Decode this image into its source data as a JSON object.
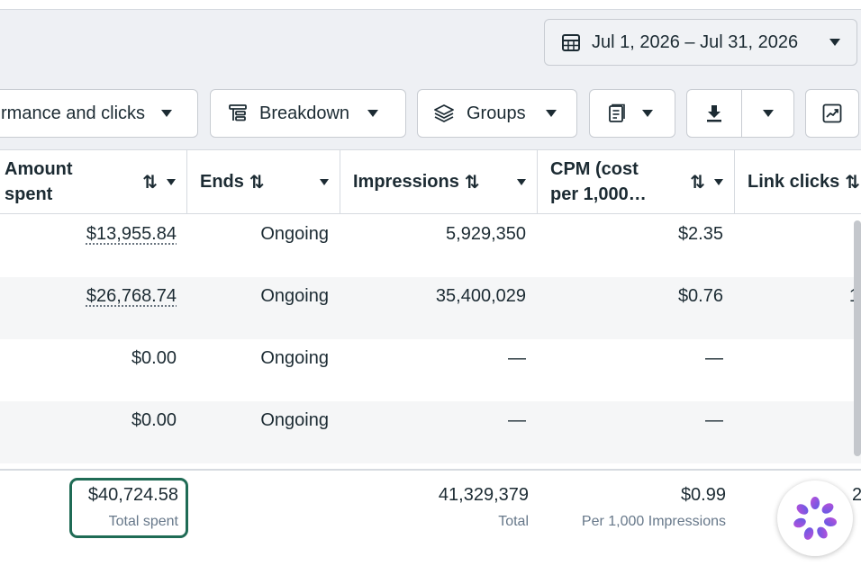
{
  "date_range": {
    "label": "Jul 1, 2026 – Jul 31, 2026"
  },
  "toolbar": {
    "columns_label": "rmance and clicks",
    "breakdown_label": "Breakdown",
    "groups_label": "Groups"
  },
  "table": {
    "headers": {
      "amount_spent": [
        "Amount",
        "spent"
      ],
      "ends": "Ends",
      "impressions": "Impressions",
      "cpm": [
        "CPM (cost",
        "per 1,000…"
      ],
      "link_clicks": "Link clicks"
    },
    "rows": [
      {
        "amount_spent": "$13,955.84",
        "ends": "Ongoing",
        "impressions": "5,929,350",
        "cpm": "$2.35",
        "link_clicks": ""
      },
      {
        "amount_spent": "$26,768.74",
        "ends": "Ongoing",
        "impressions": "35,400,029",
        "cpm": "$0.76",
        "link_clicks": "1"
      },
      {
        "amount_spent": "$0.00",
        "ends": "Ongoing",
        "impressions": "—",
        "cpm": "—",
        "link_clicks": ""
      },
      {
        "amount_spent": "$0.00",
        "ends": "Ongoing",
        "impressions": "—",
        "cpm": "—",
        "link_clicks": ""
      }
    ],
    "totals": {
      "amount_spent": "$40,724.58",
      "amount_spent_sub": "Total spent",
      "impressions": "41,329,379",
      "impressions_sub": "Total",
      "cpm": "$0.99",
      "cpm_sub": "Per 1,000 Impressions",
      "link_clicks": "2"
    }
  },
  "icons": {
    "calendar": "calendar-icon",
    "breakdown": "breakdown-icon",
    "groups": "layers-icon",
    "reports": "reports-icon",
    "download": "download-icon",
    "chart": "chart-icon",
    "assistant": "assistant-icon"
  },
  "colors": {
    "highlight_border": "#1f6b55",
    "row_alt": "#f5f6f7",
    "assistant_gradient": [
      "#c04fd9",
      "#5b5ce6"
    ]
  }
}
